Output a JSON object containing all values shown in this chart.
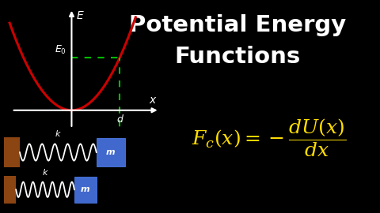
{
  "background_color": "#000000",
  "title_line1": "Potential Energy",
  "title_line2": "Functions",
  "title_color": "#ffffff",
  "title_fontsize": 21,
  "graph": {
    "xlim": [
      -1.6,
      2.2
    ],
    "ylim": [
      -0.6,
      2.8
    ],
    "axis_color": "#ffffff",
    "curve_color": "#cc0000",
    "dashed_color": "#00bb00",
    "E_label": "E",
    "x_label": "x",
    "E0_label": "$E_0$",
    "d_label": "d",
    "E0_y": 1.44,
    "d_x": 1.2
  },
  "formula_color": "#ffdd00",
  "formula_fontsize": 18,
  "spring_system": {
    "wall_color": "#8B4513",
    "spring_color": "#ffffff",
    "block_color": "#4169cd",
    "block_text": "m",
    "spring_label": "k",
    "label_color": "#ffffff"
  }
}
